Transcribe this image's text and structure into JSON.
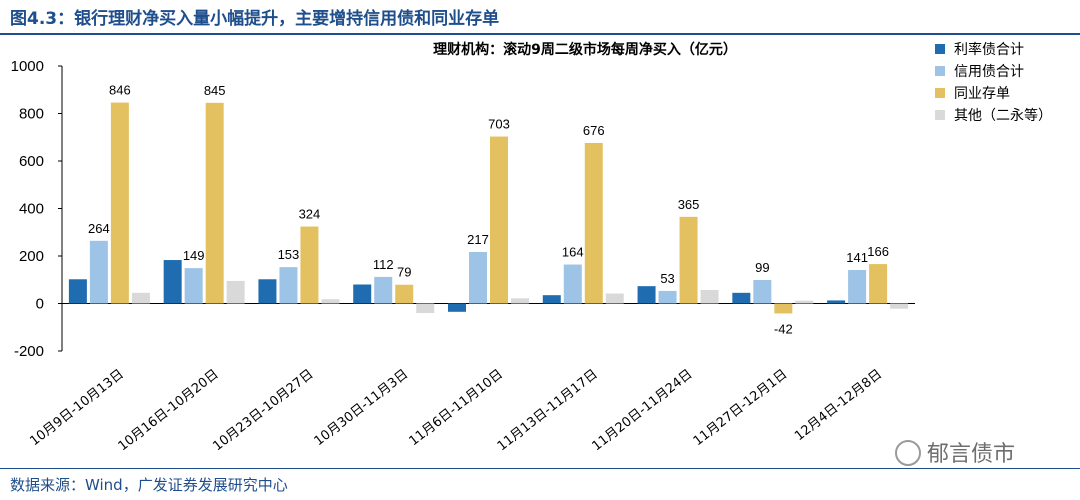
{
  "page": {
    "figure_title": "图4.3：银行理财净买入量小幅提升，主要增持信用债和同业存单",
    "source": "数据来源：Wind，广发证券发展研究中心",
    "watermark": "郁言债市"
  },
  "chart_data": {
    "type": "bar",
    "title": "理财机构：滚动9周二级市场每周净买入（亿元）",
    "xlabel": "",
    "ylabel": "",
    "ylim": [
      -200,
      1000
    ],
    "yticks": [
      -200,
      0,
      200,
      400,
      600,
      800,
      1000
    ],
    "categories": [
      "10月9日-10月13日",
      "10月16日-10月20日",
      "10月23日-10月27日",
      "10月30日-11月3日",
      "11月6日-11月10日",
      "11月13日-11月17日",
      "11月20日-11月24日",
      "11月27日-12月1日",
      "12月4日-12月8日"
    ],
    "series": [
      {
        "name": "利率债合计",
        "color": "#1f6db0",
        "labeled": false,
        "values": [
          102,
          183,
          102,
          80,
          -35,
          35,
          73,
          45,
          13
        ]
      },
      {
        "name": "信用债合计",
        "color": "#9dc3e6",
        "labeled": true,
        "values": [
          264,
          149,
          153,
          112,
          217,
          164,
          53,
          99,
          141
        ]
      },
      {
        "name": "同业存单",
        "color": "#e3c160",
        "labeled": true,
        "values": [
          846,
          845,
          324,
          79,
          703,
          676,
          365,
          -42,
          166
        ]
      },
      {
        "name": "其他（二永等）",
        "color": "#d9d9d9",
        "labeled": false,
        "values": [
          45,
          95,
          18,
          -40,
          22,
          42,
          57,
          12,
          -22
        ]
      }
    ],
    "legend_position": "top-right",
    "grid": false
  }
}
